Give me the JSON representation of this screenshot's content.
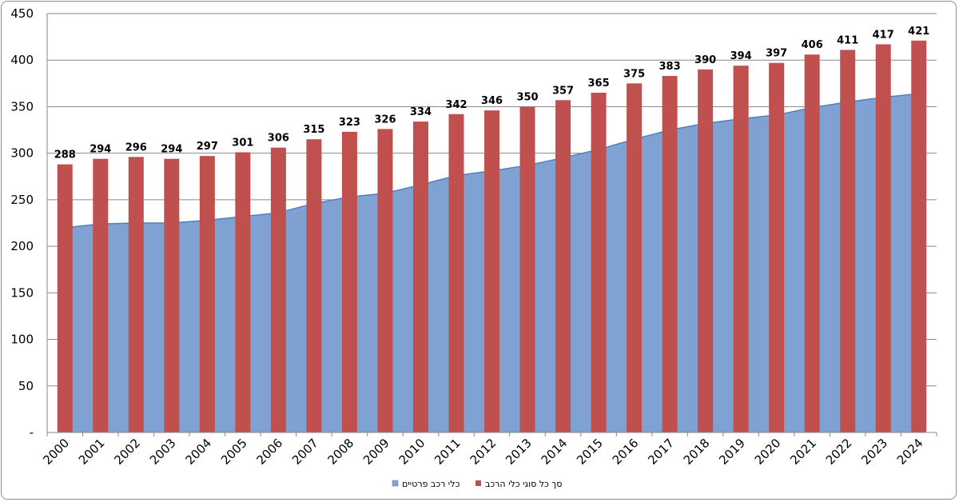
{
  "chart_data": {
    "type": "bar",
    "categories": [
      "2000",
      "2001",
      "2002",
      "2003",
      "2004",
      "2005",
      "2006",
      "2007",
      "2008",
      "2009",
      "2010",
      "2011",
      "2012",
      "2013",
      "2014",
      "2015",
      "2016",
      "2017",
      "2018",
      "2019",
      "2020",
      "2021",
      "2022",
      "2023",
      "2024"
    ],
    "series": [
      {
        "name": "כלי רכב פרטיים",
        "type": "area",
        "color": "#7fa2d2",
        "values": [
          220,
          224,
          225,
          225,
          228,
          232,
          236,
          246,
          253,
          257,
          266,
          276,
          281,
          287,
          295,
          304,
          315,
          325,
          332,
          337,
          341,
          349,
          355,
          360,
          364
        ]
      },
      {
        "name": "סך כל סוגי כלי הרכב",
        "type": "bar",
        "color": "#c0504d",
        "values": [
          288,
          294,
          296,
          294,
          297,
          301,
          306,
          315,
          323,
          326,
          334,
          342,
          346,
          350,
          357,
          365,
          375,
          383,
          390,
          394,
          397,
          406,
          411,
          417,
          421
        ]
      }
    ],
    "data_labels": [
      "288",
      "294",
      "296",
      "294",
      "297",
      "301",
      "306",
      "315",
      "323",
      "326",
      "334",
      "342",
      "346",
      "350",
      "357",
      "365",
      "375",
      "383",
      "390",
      "394",
      "397",
      "406",
      "411",
      "417",
      "421"
    ],
    "ylim": [
      0,
      450
    ],
    "y_ticks": [
      "-",
      "50",
      "100",
      "150",
      "200",
      "250",
      "300",
      "350",
      "400",
      "450"
    ],
    "y_tick_values": [
      0,
      50,
      100,
      150,
      200,
      250,
      300,
      350,
      400,
      450
    ],
    "grid": true,
    "legend_position": "bottom",
    "title": "",
    "xlabel": "",
    "ylabel": ""
  }
}
